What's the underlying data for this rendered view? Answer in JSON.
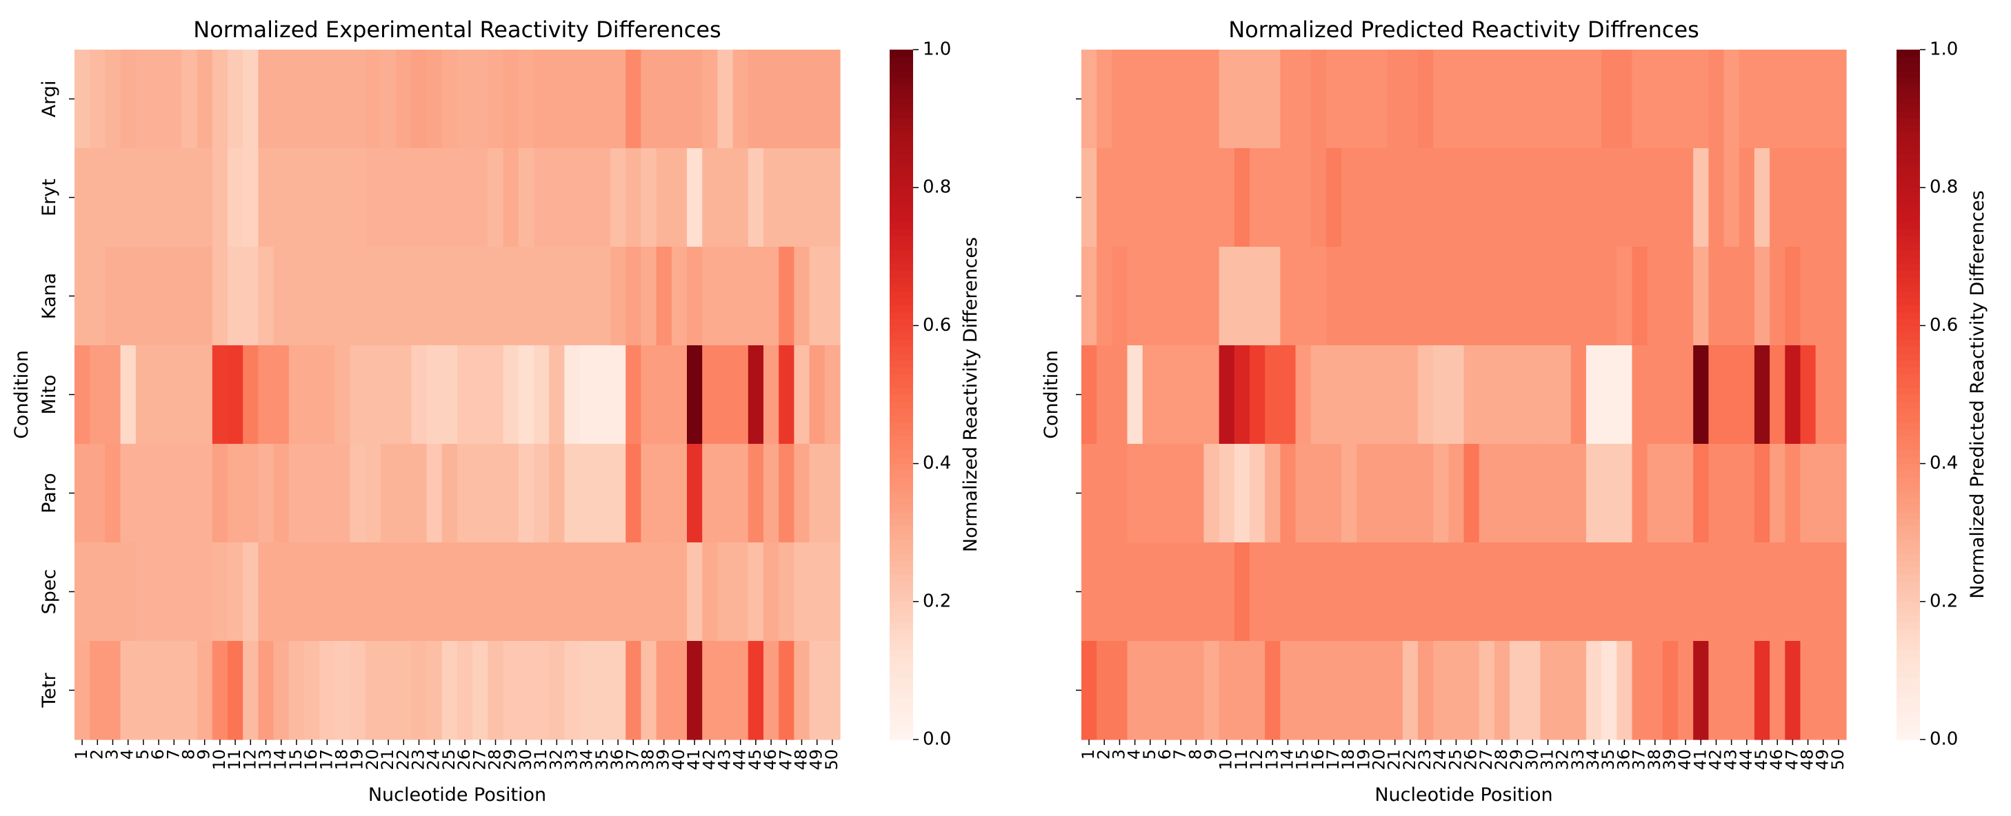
{
  "chart_data": [
    {
      "type": "heatmap",
      "title": "Normalized Experimental Reactivity Differences",
      "xlabel": "Nucleotide Position",
      "ylabel": "Condition",
      "colorbar_label": "Normalized Reactivity Differences",
      "colorbar_ticks": [
        "0.0",
        "0.2",
        "0.4",
        "0.6",
        "0.8",
        "1.0"
      ],
      "vrange": [
        0,
        1
      ],
      "x": [
        "1",
        "2",
        "3",
        "4",
        "5",
        "6",
        "7",
        "8",
        "9",
        "10",
        "11",
        "12",
        "13",
        "14",
        "15",
        "16",
        "17",
        "18",
        "19",
        "20",
        "21",
        "22",
        "23",
        "24",
        "25",
        "26",
        "27",
        "28",
        "29",
        "30",
        "31",
        "32",
        "33",
        "34",
        "35",
        "36",
        "37",
        "38",
        "39",
        "40",
        "41",
        "42",
        "43",
        "44",
        "45",
        "46",
        "47",
        "48",
        "49",
        "50"
      ],
      "y": [
        "Argi",
        "Eryt",
        "Kana",
        "Mito",
        "Paro",
        "Spec",
        "Tetr"
      ],
      "values": [
        [
          0.23,
          0.25,
          0.27,
          0.29,
          0.28,
          0.28,
          0.28,
          0.25,
          0.29,
          0.24,
          0.2,
          0.17,
          0.29,
          0.29,
          0.29,
          0.29,
          0.29,
          0.29,
          0.29,
          0.3,
          0.29,
          0.31,
          0.33,
          0.32,
          0.3,
          0.29,
          0.29,
          0.3,
          0.31,
          0.3,
          0.31,
          0.31,
          0.31,
          0.31,
          0.31,
          0.31,
          0.4,
          0.32,
          0.32,
          0.32,
          0.32,
          0.3,
          0.22,
          0.3,
          0.32,
          0.32,
          0.32,
          0.32,
          0.32,
          0.32
        ],
        [
          0.27,
          0.27,
          0.27,
          0.27,
          0.27,
          0.27,
          0.27,
          0.27,
          0.27,
          0.24,
          0.18,
          0.17,
          0.27,
          0.27,
          0.27,
          0.27,
          0.27,
          0.27,
          0.27,
          0.28,
          0.28,
          0.28,
          0.28,
          0.28,
          0.28,
          0.28,
          0.28,
          0.26,
          0.3,
          0.26,
          0.28,
          0.28,
          0.28,
          0.28,
          0.28,
          0.24,
          0.27,
          0.24,
          0.27,
          0.27,
          0.13,
          0.27,
          0.27,
          0.27,
          0.2,
          0.26,
          0.26,
          0.26,
          0.26,
          0.26
        ],
        [
          0.27,
          0.27,
          0.29,
          0.29,
          0.29,
          0.29,
          0.29,
          0.29,
          0.29,
          0.24,
          0.2,
          0.2,
          0.24,
          0.27,
          0.27,
          0.27,
          0.27,
          0.27,
          0.27,
          0.27,
          0.27,
          0.27,
          0.27,
          0.27,
          0.27,
          0.27,
          0.27,
          0.27,
          0.27,
          0.27,
          0.27,
          0.27,
          0.27,
          0.27,
          0.27,
          0.3,
          0.33,
          0.3,
          0.38,
          0.3,
          0.33,
          0.3,
          0.3,
          0.3,
          0.3,
          0.3,
          0.42,
          0.3,
          0.24,
          0.24
        ],
        [
          0.38,
          0.34,
          0.34,
          0.15,
          0.27,
          0.27,
          0.27,
          0.27,
          0.27,
          0.62,
          0.63,
          0.44,
          0.38,
          0.38,
          0.3,
          0.3,
          0.3,
          0.27,
          0.24,
          0.24,
          0.24,
          0.24,
          0.19,
          0.17,
          0.17,
          0.21,
          0.21,
          0.21,
          0.16,
          0.13,
          0.16,
          0.24,
          0.08,
          0.06,
          0.06,
          0.06,
          0.42,
          0.34,
          0.34,
          0.34,
          0.98,
          0.42,
          0.42,
          0.42,
          0.85,
          0.34,
          0.64,
          0.24,
          0.34,
          0.3
        ],
        [
          0.32,
          0.32,
          0.35,
          0.28,
          0.28,
          0.28,
          0.28,
          0.28,
          0.28,
          0.33,
          0.3,
          0.3,
          0.28,
          0.31,
          0.28,
          0.28,
          0.28,
          0.28,
          0.23,
          0.24,
          0.27,
          0.27,
          0.27,
          0.21,
          0.27,
          0.24,
          0.24,
          0.24,
          0.24,
          0.2,
          0.22,
          0.26,
          0.18,
          0.18,
          0.18,
          0.18,
          0.46,
          0.31,
          0.31,
          0.31,
          0.66,
          0.31,
          0.31,
          0.31,
          0.41,
          0.31,
          0.41,
          0.31,
          0.26,
          0.26
        ],
        [
          0.29,
          0.29,
          0.29,
          0.29,
          0.28,
          0.28,
          0.28,
          0.28,
          0.28,
          0.27,
          0.26,
          0.22,
          0.3,
          0.3,
          0.3,
          0.3,
          0.3,
          0.3,
          0.3,
          0.3,
          0.3,
          0.3,
          0.3,
          0.3,
          0.3,
          0.3,
          0.3,
          0.3,
          0.3,
          0.3,
          0.3,
          0.3,
          0.3,
          0.3,
          0.3,
          0.3,
          0.3,
          0.3,
          0.3,
          0.3,
          0.22,
          0.3,
          0.27,
          0.27,
          0.24,
          0.3,
          0.27,
          0.24,
          0.24,
          0.24
        ],
        [
          0.3,
          0.35,
          0.35,
          0.25,
          0.25,
          0.25,
          0.25,
          0.25,
          0.29,
          0.4,
          0.47,
          0.25,
          0.34,
          0.29,
          0.25,
          0.24,
          0.21,
          0.2,
          0.21,
          0.24,
          0.24,
          0.24,
          0.25,
          0.24,
          0.18,
          0.21,
          0.18,
          0.23,
          0.21,
          0.21,
          0.21,
          0.22,
          0.19,
          0.18,
          0.18,
          0.18,
          0.42,
          0.24,
          0.35,
          0.35,
          0.88,
          0.35,
          0.35,
          0.35,
          0.63,
          0.34,
          0.48,
          0.29,
          0.22,
          0.22
        ]
      ]
    },
    {
      "type": "heatmap",
      "title": "Normalized Predicted Reactivity Diffrences",
      "xlabel": "Nucleotide Position",
      "ylabel": "Condition",
      "colorbar_label": "Normalized Predicted Reactivity Differences",
      "colorbar_ticks": [
        "0.0",
        "0.2",
        "0.4",
        "0.6",
        "0.8",
        "1.0"
      ],
      "vrange": [
        0,
        1
      ],
      "x": [
        "1",
        "2",
        "3",
        "4",
        "5",
        "6",
        "7",
        "8",
        "9",
        "10",
        "11",
        "12",
        "13",
        "14",
        "15",
        "16",
        "17",
        "18",
        "19",
        "20",
        "21",
        "22",
        "23",
        "24",
        "25",
        "26",
        "27",
        "28",
        "29",
        "30",
        "31",
        "32",
        "33",
        "34",
        "35",
        "36",
        "37",
        "38",
        "39",
        "40",
        "41",
        "42",
        "43",
        "44",
        "45",
        "46",
        "47",
        "48",
        "49",
        "50"
      ],
      "y": [
        "Argi",
        "Eryt",
        "Kana",
        "Mito",
        "Paro",
        "Spec",
        "Tetr"
      ],
      "values": [
        [
          0.3,
          0.35,
          0.38,
          0.38,
          0.38,
          0.38,
          0.38,
          0.38,
          0.38,
          0.3,
          0.3,
          0.3,
          0.3,
          0.38,
          0.38,
          0.4,
          0.38,
          0.38,
          0.38,
          0.38,
          0.4,
          0.4,
          0.42,
          0.38,
          0.38,
          0.38,
          0.38,
          0.38,
          0.38,
          0.38,
          0.38,
          0.38,
          0.38,
          0.38,
          0.42,
          0.42,
          0.38,
          0.38,
          0.38,
          0.38,
          0.38,
          0.4,
          0.35,
          0.38,
          0.38,
          0.38,
          0.38,
          0.38,
          0.38,
          0.38
        ],
        [
          0.26,
          0.38,
          0.38,
          0.38,
          0.38,
          0.38,
          0.38,
          0.38,
          0.38,
          0.38,
          0.44,
          0.38,
          0.38,
          0.38,
          0.38,
          0.4,
          0.44,
          0.4,
          0.4,
          0.4,
          0.4,
          0.4,
          0.4,
          0.4,
          0.4,
          0.4,
          0.4,
          0.4,
          0.4,
          0.4,
          0.4,
          0.4,
          0.4,
          0.4,
          0.4,
          0.4,
          0.4,
          0.4,
          0.4,
          0.4,
          0.22,
          0.4,
          0.35,
          0.4,
          0.22,
          0.4,
          0.4,
          0.4,
          0.4,
          0.4
        ],
        [
          0.3,
          0.38,
          0.4,
          0.38,
          0.38,
          0.38,
          0.38,
          0.38,
          0.38,
          0.24,
          0.24,
          0.24,
          0.24,
          0.38,
          0.38,
          0.38,
          0.4,
          0.4,
          0.4,
          0.4,
          0.4,
          0.4,
          0.4,
          0.4,
          0.4,
          0.4,
          0.4,
          0.4,
          0.4,
          0.4,
          0.4,
          0.4,
          0.4,
          0.4,
          0.4,
          0.38,
          0.44,
          0.4,
          0.4,
          0.4,
          0.3,
          0.4,
          0.4,
          0.4,
          0.32,
          0.4,
          0.44,
          0.4,
          0.4,
          0.4
        ],
        [
          0.46,
          0.4,
          0.4,
          0.12,
          0.35,
          0.35,
          0.35,
          0.35,
          0.35,
          0.8,
          0.7,
          0.62,
          0.54,
          0.54,
          0.35,
          0.3,
          0.3,
          0.3,
          0.3,
          0.3,
          0.3,
          0.3,
          0.24,
          0.22,
          0.22,
          0.3,
          0.3,
          0.3,
          0.3,
          0.3,
          0.3,
          0.3,
          0.4,
          0.04,
          0.04,
          0.04,
          0.4,
          0.4,
          0.4,
          0.4,
          0.98,
          0.46,
          0.46,
          0.46,
          0.92,
          0.46,
          0.78,
          0.6,
          0.4,
          0.4
        ],
        [
          0.4,
          0.4,
          0.4,
          0.38,
          0.38,
          0.38,
          0.38,
          0.38,
          0.24,
          0.2,
          0.15,
          0.2,
          0.3,
          0.4,
          0.34,
          0.34,
          0.34,
          0.3,
          0.34,
          0.34,
          0.34,
          0.34,
          0.34,
          0.3,
          0.34,
          0.46,
          0.34,
          0.34,
          0.34,
          0.34,
          0.34,
          0.34,
          0.34,
          0.2,
          0.2,
          0.2,
          0.4,
          0.34,
          0.34,
          0.34,
          0.46,
          0.4,
          0.4,
          0.4,
          0.46,
          0.34,
          0.4,
          0.34,
          0.34,
          0.34
        ],
        [
          0.4,
          0.4,
          0.4,
          0.4,
          0.4,
          0.4,
          0.4,
          0.4,
          0.4,
          0.4,
          0.46,
          0.4,
          0.4,
          0.4,
          0.4,
          0.4,
          0.4,
          0.4,
          0.4,
          0.4,
          0.4,
          0.4,
          0.4,
          0.4,
          0.4,
          0.4,
          0.4,
          0.4,
          0.4,
          0.4,
          0.4,
          0.4,
          0.4,
          0.4,
          0.4,
          0.4,
          0.4,
          0.4,
          0.4,
          0.4,
          0.4,
          0.4,
          0.4,
          0.4,
          0.4,
          0.4,
          0.4,
          0.4,
          0.4,
          0.4
        ],
        [
          0.52,
          0.45,
          0.45,
          0.34,
          0.34,
          0.34,
          0.34,
          0.34,
          0.3,
          0.34,
          0.34,
          0.34,
          0.46,
          0.34,
          0.34,
          0.34,
          0.34,
          0.34,
          0.34,
          0.34,
          0.34,
          0.24,
          0.34,
          0.3,
          0.3,
          0.3,
          0.24,
          0.3,
          0.2,
          0.2,
          0.3,
          0.3,
          0.3,
          0.15,
          0.1,
          0.2,
          0.4,
          0.4,
          0.46,
          0.4,
          0.84,
          0.4,
          0.4,
          0.4,
          0.66,
          0.4,
          0.66,
          0.4,
          0.4,
          0.4
        ]
      ]
    }
  ]
}
